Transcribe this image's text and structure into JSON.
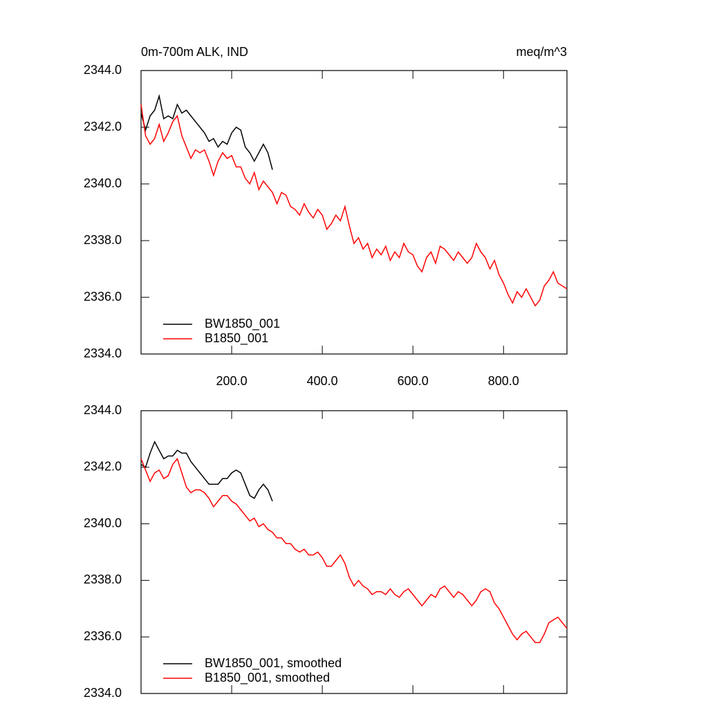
{
  "chart_data": [
    {
      "type": "line",
      "title": "0m-700m ALK, IND",
      "units": "meq/m^3",
      "x": [
        0,
        10,
        20,
        30,
        40,
        50,
        60,
        70,
        80,
        90,
        100,
        110,
        120,
        130,
        140,
        150,
        160,
        170,
        180,
        190,
        200,
        210,
        220,
        230,
        240,
        250,
        260,
        270,
        280,
        290,
        300,
        310,
        320,
        330,
        340,
        350,
        360,
        370,
        380,
        390,
        400,
        410,
        420,
        430,
        440,
        450,
        460,
        470,
        480,
        490,
        500,
        510,
        520,
        530,
        540,
        550,
        560,
        570,
        580,
        590,
        600,
        610,
        620,
        630,
        640,
        650,
        660,
        670,
        680,
        690,
        700,
        710,
        720,
        730,
        740,
        750,
        760,
        770,
        780,
        790,
        800,
        810,
        820,
        830,
        840,
        850,
        860,
        870,
        880,
        890,
        900,
        910,
        920,
        930,
        940
      ],
      "series": [
        {
          "name": "BW1850_001",
          "color": "#000000",
          "values": [
            2342.5,
            2341.9,
            2342.4,
            2342.6,
            2343.1,
            2342.3,
            2342.4,
            2342.3,
            2342.8,
            2342.5,
            2342.6,
            2342.4,
            2342.2,
            2342.0,
            2341.8,
            2341.5,
            2341.6,
            2341.3,
            2341.5,
            2341.4,
            2341.8,
            2342.0,
            2341.9,
            2341.3,
            2341.1,
            2340.8,
            2341.1,
            2341.4,
            2341.1,
            2340.5,
            null,
            null,
            null,
            null,
            null,
            null,
            null,
            null,
            null,
            null,
            null,
            null,
            null,
            null,
            null,
            null,
            null,
            null,
            null,
            null,
            null,
            null,
            null,
            null,
            null,
            null,
            null,
            null,
            null,
            null,
            null,
            null,
            null,
            null,
            null,
            null,
            null,
            null,
            null,
            null,
            null,
            null,
            null,
            null,
            null,
            null,
            null,
            null,
            null,
            null,
            null,
            null,
            null,
            null,
            null,
            null,
            null,
            null,
            null,
            null,
            null,
            null,
            null,
            null,
            null
          ]
        },
        {
          "name": "B1850_001",
          "color": "#ff0000",
          "values": [
            2342.8,
            2341.7,
            2341.4,
            2341.6,
            2342.1,
            2341.5,
            2341.8,
            2342.2,
            2342.4,
            2341.7,
            2341.3,
            2340.9,
            2341.2,
            2341.1,
            2341.2,
            2340.8,
            2340.3,
            2340.8,
            2341.1,
            2340.9,
            2341.0,
            2340.6,
            2340.6,
            2340.2,
            2340.0,
            2340.4,
            2339.8,
            2340.1,
            2339.9,
            2339.7,
            2339.3,
            2339.7,
            2339.6,
            2339.2,
            2339.1,
            2338.9,
            2339.3,
            2339.0,
            2338.8,
            2339.1,
            2338.9,
            2338.4,
            2338.6,
            2338.9,
            2338.7,
            2339.2,
            2338.5,
            2337.9,
            2338.1,
            2337.7,
            2337.9,
            2337.4,
            2337.7,
            2337.5,
            2337.8,
            2337.3,
            2337.6,
            2337.4,
            2337.9,
            2337.6,
            2337.5,
            2337.1,
            2336.9,
            2337.4,
            2337.6,
            2337.2,
            2337.8,
            2337.7,
            2337.5,
            2337.3,
            2337.6,
            2337.4,
            2337.2,
            2337.4,
            2337.9,
            2337.6,
            2337.4,
            2337.0,
            2337.3,
            2336.8,
            2336.5,
            2336.1,
            2335.8,
            2336.2,
            2336.0,
            2336.3,
            2336.0,
            2335.7,
            2335.9,
            2336.4,
            2336.6,
            2336.9,
            2336.5,
            2336.4,
            2336.3
          ]
        }
      ],
      "xlim": [
        0,
        940
      ],
      "xticks": [
        {
          "value": 200,
          "label": "200.0"
        },
        {
          "value": 400,
          "label": "400.0"
        },
        {
          "value": 600,
          "label": "600.0"
        },
        {
          "value": 800,
          "label": "800.0"
        }
      ],
      "ylim": [
        2334,
        2344
      ],
      "yticks": [
        {
          "value": 2334,
          "label": "2334.0"
        },
        {
          "value": 2336,
          "label": "2336.0"
        },
        {
          "value": 2338,
          "label": "2338.0"
        },
        {
          "value": 2340,
          "label": "2340.0"
        },
        {
          "value": 2342,
          "label": "2342.0"
        },
        {
          "value": 2344,
          "label": "2344.0"
        }
      ],
      "legend": "lower left"
    },
    {
      "type": "line",
      "x": [
        0,
        10,
        20,
        30,
        40,
        50,
        60,
        70,
        80,
        90,
        100,
        110,
        120,
        130,
        140,
        150,
        160,
        170,
        180,
        190,
        200,
        210,
        220,
        230,
        240,
        250,
        260,
        270,
        280,
        290,
        300,
        310,
        320,
        330,
        340,
        350,
        360,
        370,
        380,
        390,
        400,
        410,
        420,
        430,
        440,
        450,
        460,
        470,
        480,
        490,
        500,
        510,
        520,
        530,
        540,
        550,
        560,
        570,
        580,
        590,
        600,
        610,
        620,
        630,
        640,
        650,
        660,
        670,
        680,
        690,
        700,
        710,
        720,
        730,
        740,
        750,
        760,
        770,
        780,
        790,
        800,
        810,
        820,
        830,
        840,
        850,
        860,
        870,
        880,
        890,
        900,
        910,
        920,
        930,
        940
      ],
      "series": [
        {
          "name": "BW1850_001, smoothed",
          "color": "#000000",
          "values": [
            2342.1,
            2342.0,
            2342.5,
            2342.9,
            2342.6,
            2342.3,
            2342.4,
            2342.4,
            2342.6,
            2342.5,
            2342.5,
            2342.2,
            2342.0,
            2341.8,
            2341.6,
            2341.4,
            2341.4,
            2341.4,
            2341.6,
            2341.6,
            2341.8,
            2341.9,
            2341.8,
            2341.4,
            2341.0,
            2340.9,
            2341.2,
            2341.4,
            2341.2,
            2340.8,
            null,
            null,
            null,
            null,
            null,
            null,
            null,
            null,
            null,
            null,
            null,
            null,
            null,
            null,
            null,
            null,
            null,
            null,
            null,
            null,
            null,
            null,
            null,
            null,
            null,
            null,
            null,
            null,
            null,
            null,
            null,
            null,
            null,
            null,
            null,
            null,
            null,
            null,
            null,
            null,
            null,
            null,
            null,
            null,
            null,
            null,
            null,
            null,
            null,
            null,
            null,
            null,
            null,
            null,
            null,
            null,
            null,
            null,
            null,
            null,
            null,
            null,
            null,
            null,
            null
          ]
        },
        {
          "name": "B1850_001, smoothed",
          "color": "#ff0000",
          "values": [
            2342.3,
            2341.9,
            2341.5,
            2341.8,
            2341.9,
            2341.6,
            2341.7,
            2342.1,
            2342.3,
            2341.8,
            2341.3,
            2341.1,
            2341.2,
            2341.2,
            2341.1,
            2340.9,
            2340.6,
            2340.8,
            2341.0,
            2341.0,
            2340.8,
            2340.7,
            2340.5,
            2340.3,
            2340.1,
            2340.2,
            2339.9,
            2340.0,
            2339.8,
            2339.7,
            2339.5,
            2339.5,
            2339.3,
            2339.3,
            2339.1,
            2339.0,
            2339.1,
            2338.9,
            2338.9,
            2339.0,
            2338.8,
            2338.5,
            2338.5,
            2338.7,
            2338.9,
            2338.6,
            2338.1,
            2337.8,
            2338.0,
            2337.8,
            2337.7,
            2337.5,
            2337.6,
            2337.6,
            2337.5,
            2337.7,
            2337.5,
            2337.4,
            2337.6,
            2337.7,
            2337.5,
            2337.3,
            2337.1,
            2337.3,
            2337.5,
            2337.4,
            2337.7,
            2337.8,
            2337.6,
            2337.4,
            2337.6,
            2337.5,
            2337.3,
            2337.1,
            2337.3,
            2337.6,
            2337.7,
            2337.6,
            2337.2,
            2337.0,
            2336.7,
            2336.4,
            2336.1,
            2335.9,
            2336.1,
            2336.2,
            2336.0,
            2335.8,
            2335.8,
            2336.1,
            2336.5,
            2336.6,
            2336.7,
            2336.5,
            2336.3
          ]
        }
      ],
      "xlim": [
        0,
        940
      ],
      "xticks": [
        200,
        400,
        600,
        800
      ],
      "xtick_labels": false,
      "ylim": [
        2334,
        2344
      ],
      "yticks": [
        {
          "value": 2334,
          "label": "2334.0"
        },
        {
          "value": 2336,
          "label": "2336.0"
        },
        {
          "value": 2338,
          "label": "2338.0"
        },
        {
          "value": 2340,
          "label": "2340.0"
        },
        {
          "value": 2342,
          "label": "2342.0"
        },
        {
          "value": 2344,
          "label": "2344.0"
        }
      ],
      "legend": "lower left"
    }
  ]
}
